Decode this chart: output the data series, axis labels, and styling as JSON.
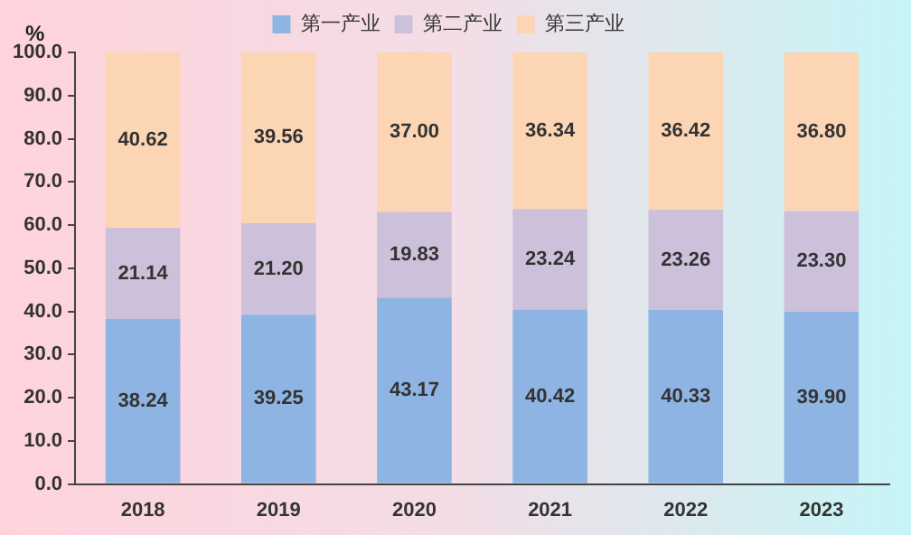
{
  "chart_data": {
    "type": "bar",
    "stacked": true,
    "ylabel": "%",
    "categories": [
      "2018",
      "2019",
      "2020",
      "2021",
      "2022",
      "2023"
    ],
    "series": [
      {
        "name": "第一产业",
        "color": "#8db4e2",
        "values": [
          38.24,
          39.25,
          43.17,
          40.42,
          40.33,
          39.9
        ],
        "value_labels": [
          "38.24",
          "39.25",
          "43.17",
          "40.42",
          "40.33",
          "39.90"
        ]
      },
      {
        "name": "第二产业",
        "color": "#ccc0da",
        "values": [
          21.14,
          21.2,
          19.83,
          23.24,
          23.26,
          23.3
        ],
        "value_labels": [
          "21.14",
          "21.20",
          "19.83",
          "23.24",
          "23.26",
          "23.30"
        ]
      },
      {
        "name": "第三产业",
        "color": "#fcd5b4",
        "values": [
          40.62,
          39.56,
          37,
          36.34,
          36.42,
          36.8
        ],
        "value_labels": [
          "40.62",
          "39.56",
          "37.00",
          "36.34",
          "36.42",
          "36.80"
        ]
      }
    ],
    "ylim": [
      0,
      100
    ],
    "yticks": [
      {
        "value": 0,
        "label": "0.0"
      },
      {
        "value": 10,
        "label": "10.0"
      },
      {
        "value": 20,
        "label": "20.0"
      },
      {
        "value": 30,
        "label": "30.0"
      },
      {
        "value": 40,
        "label": "40.0"
      },
      {
        "value": 50,
        "label": "50.0"
      },
      {
        "value": 60,
        "label": "60.0"
      },
      {
        "value": 70,
        "label": "70.0"
      },
      {
        "value": 80,
        "label": "80.0"
      },
      {
        "value": 90,
        "label": "90.0"
      },
      {
        "value": 100,
        "label": "100.0"
      }
    ],
    "grid": false,
    "legend": "top"
  }
}
